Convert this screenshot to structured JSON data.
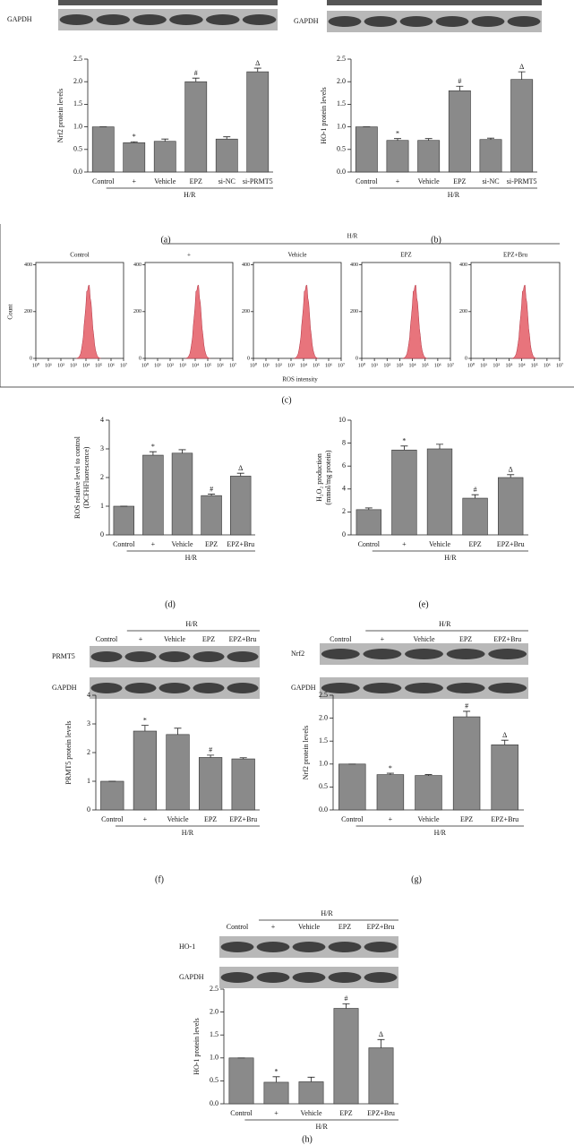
{
  "chart_data": [
    {
      "type": "bar",
      "label": "(a)",
      "ylabel": [
        "Nrf2 protein levels"
      ],
      "group": "H/R",
      "categories": [
        "Control",
        "+",
        "Vehicle",
        "EPZ",
        "si-NC",
        "si-PRMT5"
      ],
      "values": [
        1.0,
        0.65,
        0.68,
        2.0,
        0.73,
        2.22
      ],
      "errors": [
        0,
        0.02,
        0.05,
        0.08,
        0.05,
        0.08
      ],
      "marks": [
        null,
        "*",
        null,
        "#",
        null,
        "Δ"
      ],
      "color": "#8a8a8a",
      "ylim": [
        0,
        2.5
      ],
      "yticks": [
        {
          "value": 0,
          "label": "0.0"
        },
        {
          "value": 0.5,
          "label": "0.5"
        },
        {
          "value": 1,
          "label": "1.0"
        },
        {
          "value": 1.5,
          "label": "1.5"
        },
        {
          "value": 2,
          "label": "2.0"
        },
        {
          "value": 2.5,
          "label": "2.5"
        }
      ],
      "blot_rows": [
        "GAPDH"
      ]
    },
    {
      "type": "bar",
      "label": "(b)",
      "ylabel": [
        "HO-1 protein levels"
      ],
      "group": "H/R",
      "categories": [
        "Control",
        "+",
        "Vehicle",
        "EPZ",
        "si-NC",
        "si-PRMT5"
      ],
      "values": [
        1.0,
        0.7,
        0.7,
        1.8,
        0.72,
        2.05
      ],
      "errors": [
        0,
        0.04,
        0.04,
        0.1,
        0.03,
        0.17
      ],
      "marks": [
        null,
        "*",
        null,
        "#",
        null,
        "Δ"
      ],
      "color": "#8a8a8a",
      "ylim": [
        0,
        2.5
      ],
      "yticks": [
        {
          "value": 0,
          "label": "0.0"
        },
        {
          "value": 0.5,
          "label": "0.5"
        },
        {
          "value": 1,
          "label": "1.0"
        },
        {
          "value": 1.5,
          "label": "1.5"
        },
        {
          "value": 2,
          "label": "2.0"
        },
        {
          "value": 2.5,
          "label": "2.5"
        }
      ],
      "blot_rows": [
        "GAPDH"
      ]
    },
    {
      "type": "flow",
      "label": "(c)",
      "group": "H/R",
      "ylabel": "Count",
      "xlabel": "ROS intensity",
      "panels": [
        "Control",
        "+",
        "Vehicle",
        "EPZ",
        "EPZ+Bru"
      ],
      "color": "#e8747c",
      "ylim": [
        0,
        410
      ],
      "yticks": [
        0,
        200,
        400
      ],
      "xscale": "log",
      "xlim": [
        1,
        10000000
      ],
      "xticks": [
        {
          "value": 1,
          "label": "10⁰"
        },
        {
          "value": 10,
          "label": "10¹"
        },
        {
          "value": 100,
          "label": "10²"
        },
        {
          "value": 1000,
          "label": "10³"
        },
        {
          "value": 10000,
          "label": "10⁴"
        },
        {
          "value": 100000,
          "label": "10⁵"
        },
        {
          "value": 1000000,
          "label": "10⁶"
        },
        {
          "value": 10000000,
          "label": "10⁷"
        }
      ]
    },
    {
      "type": "bar",
      "label": "(d)",
      "ylabel": [
        "ROS relative level to control",
        "(DCFHFluorescence)"
      ],
      "group": "H/R",
      "categories": [
        "Control",
        "+",
        "Vehicle",
        "EPZ",
        "EPZ+Bru"
      ],
      "values": [
        1.0,
        2.78,
        2.85,
        1.37,
        2.05
      ],
      "errors": [
        0,
        0.12,
        0.12,
        0.05,
        0.1
      ],
      "marks": [
        null,
        "*",
        null,
        "#",
        "Δ"
      ],
      "color": "#8a8a8a",
      "ylim": [
        0,
        4
      ],
      "yticks": [
        0,
        1,
        2,
        3,
        4
      ]
    },
    {
      "type": "bar",
      "label": "(e)",
      "ylabel": [
        "H₂O₂ production",
        "(mmol/mg protein)"
      ],
      "group": "H/R",
      "categories": [
        "Control",
        "+",
        "Vehicle",
        "EPZ",
        "EPZ+Bru"
      ],
      "values": [
        2.2,
        7.4,
        7.5,
        3.2,
        5.0
      ],
      "errors": [
        0.15,
        0.35,
        0.4,
        0.3,
        0.25
      ],
      "marks": [
        null,
        "*",
        null,
        "#",
        "Δ"
      ],
      "color": "#8a8a8a",
      "ylim": [
        0,
        10
      ],
      "yticks": [
        0,
        2,
        4,
        6,
        8,
        10
      ]
    },
    {
      "type": "bar",
      "label": "(f)",
      "ylabel": [
        "PRMT5 protein levels"
      ],
      "group": "H/R",
      "categories": [
        "Control",
        "+",
        "Vehicle",
        "EPZ",
        "EPZ+Bru"
      ],
      "values": [
        1.0,
        2.75,
        2.63,
        1.83,
        1.78
      ],
      "errors": [
        0,
        0.2,
        0.22,
        0.08,
        0.04
      ],
      "marks": [
        null,
        "*",
        null,
        "#",
        null
      ],
      "color": "#8a8a8a",
      "ylim": [
        0,
        4
      ],
      "yticks": [
        0,
        1,
        2,
        3,
        4
      ],
      "blot_rows": [
        "PRMT5",
        "GAPDH"
      ]
    },
    {
      "type": "bar",
      "label": "(g)",
      "ylabel": [
        "Nrf2 protein levels"
      ],
      "group": "H/R",
      "categories": [
        "Control",
        "+",
        "Vehicle",
        "EPZ",
        "EPZ+Bru"
      ],
      "values": [
        1.0,
        0.77,
        0.75,
        2.03,
        1.42
      ],
      "errors": [
        0,
        0.03,
        0.02,
        0.12,
        0.1
      ],
      "marks": [
        null,
        "*",
        null,
        "#",
        "Δ"
      ],
      "color": "#8a8a8a",
      "ylim": [
        0,
        2.5
      ],
      "yticks": [
        {
          "value": 0,
          "label": "0.0"
        },
        {
          "value": 0.5,
          "label": "0.5"
        },
        {
          "value": 1,
          "label": "1.0"
        },
        {
          "value": 1.5,
          "label": "1.5"
        },
        {
          "value": 2,
          "label": "2.0"
        },
        {
          "value": 2.5,
          "label": "2.5"
        }
      ],
      "blot_rows": [
        "Nrf2",
        "GAPDH"
      ]
    },
    {
      "type": "bar",
      "label": "(h)",
      "ylabel": [
        "HO-1 protein levels"
      ],
      "group": "H/R",
      "categories": [
        "Control",
        "+",
        "Vehicle",
        "EPZ",
        "EPZ+Bru"
      ],
      "values": [
        1.0,
        0.47,
        0.48,
        2.08,
        1.22
      ],
      "errors": [
        0,
        0.12,
        0.1,
        0.1,
        0.18
      ],
      "marks": [
        null,
        "*",
        null,
        "#",
        "Δ"
      ],
      "color": "#8a8a8a",
      "ylim": [
        0,
        2.5
      ],
      "yticks": [
        {
          "value": 0,
          "label": "0.0"
        },
        {
          "value": 0.5,
          "label": "0.5"
        },
        {
          "value": 1,
          "label": "1.0"
        },
        {
          "value": 1.5,
          "label": "1.5"
        },
        {
          "value": 2,
          "label": "2.0"
        },
        {
          "value": 2.5,
          "label": "2.5"
        }
      ],
      "blot_rows": [
        "HO-1",
        "GAPDH"
      ]
    }
  ]
}
